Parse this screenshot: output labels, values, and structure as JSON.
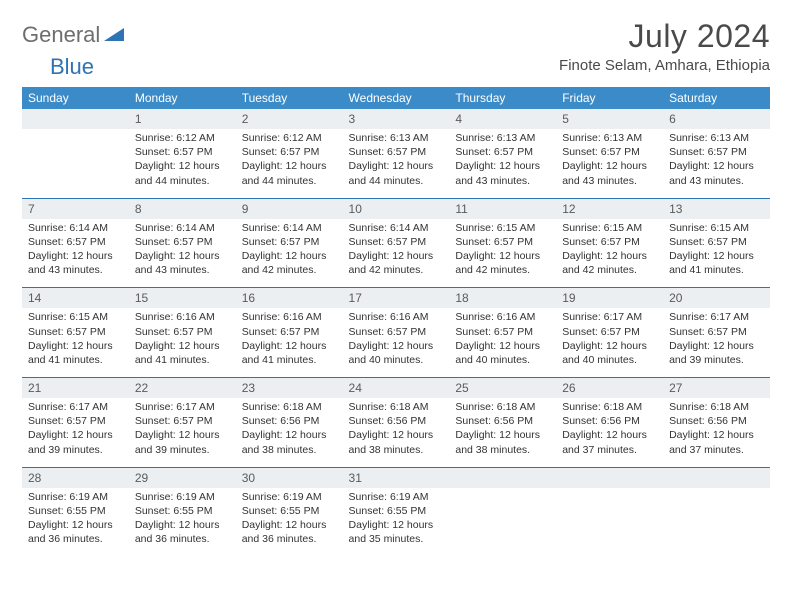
{
  "brand": {
    "word1": "General",
    "word2": "Blue"
  },
  "header": {
    "title": "July 2024",
    "location": "Finote Selam, Amhara, Ethiopia"
  },
  "colors": {
    "header_bg": "#3b8bc9",
    "header_text": "#ffffff",
    "rule": "#2e74b5",
    "daynum_bg": "#eceff1",
    "body_text": "#333333",
    "brand_gray": "#6e6e6e",
    "brand_blue": "#2e74b5"
  },
  "dow": [
    "Sunday",
    "Monday",
    "Tuesday",
    "Wednesday",
    "Thursday",
    "Friday",
    "Saturday"
  ],
  "weeks": [
    [
      null,
      {
        "n": "1",
        "sr": "6:12 AM",
        "ss": "6:57 PM",
        "dl": "12 hours and 44 minutes."
      },
      {
        "n": "2",
        "sr": "6:12 AM",
        "ss": "6:57 PM",
        "dl": "12 hours and 44 minutes."
      },
      {
        "n": "3",
        "sr": "6:13 AM",
        "ss": "6:57 PM",
        "dl": "12 hours and 44 minutes."
      },
      {
        "n": "4",
        "sr": "6:13 AM",
        "ss": "6:57 PM",
        "dl": "12 hours and 43 minutes."
      },
      {
        "n": "5",
        "sr": "6:13 AM",
        "ss": "6:57 PM",
        "dl": "12 hours and 43 minutes."
      },
      {
        "n": "6",
        "sr": "6:13 AM",
        "ss": "6:57 PM",
        "dl": "12 hours and 43 minutes."
      }
    ],
    [
      {
        "n": "7",
        "sr": "6:14 AM",
        "ss": "6:57 PM",
        "dl": "12 hours and 43 minutes."
      },
      {
        "n": "8",
        "sr": "6:14 AM",
        "ss": "6:57 PM",
        "dl": "12 hours and 43 minutes."
      },
      {
        "n": "9",
        "sr": "6:14 AM",
        "ss": "6:57 PM",
        "dl": "12 hours and 42 minutes."
      },
      {
        "n": "10",
        "sr": "6:14 AM",
        "ss": "6:57 PM",
        "dl": "12 hours and 42 minutes."
      },
      {
        "n": "11",
        "sr": "6:15 AM",
        "ss": "6:57 PM",
        "dl": "12 hours and 42 minutes."
      },
      {
        "n": "12",
        "sr": "6:15 AM",
        "ss": "6:57 PM",
        "dl": "12 hours and 42 minutes."
      },
      {
        "n": "13",
        "sr": "6:15 AM",
        "ss": "6:57 PM",
        "dl": "12 hours and 41 minutes."
      }
    ],
    [
      {
        "n": "14",
        "sr": "6:15 AM",
        "ss": "6:57 PM",
        "dl": "12 hours and 41 minutes."
      },
      {
        "n": "15",
        "sr": "6:16 AM",
        "ss": "6:57 PM",
        "dl": "12 hours and 41 minutes."
      },
      {
        "n": "16",
        "sr": "6:16 AM",
        "ss": "6:57 PM",
        "dl": "12 hours and 41 minutes."
      },
      {
        "n": "17",
        "sr": "6:16 AM",
        "ss": "6:57 PM",
        "dl": "12 hours and 40 minutes."
      },
      {
        "n": "18",
        "sr": "6:16 AM",
        "ss": "6:57 PM",
        "dl": "12 hours and 40 minutes."
      },
      {
        "n": "19",
        "sr": "6:17 AM",
        "ss": "6:57 PM",
        "dl": "12 hours and 40 minutes."
      },
      {
        "n": "20",
        "sr": "6:17 AM",
        "ss": "6:57 PM",
        "dl": "12 hours and 39 minutes."
      }
    ],
    [
      {
        "n": "21",
        "sr": "6:17 AM",
        "ss": "6:57 PM",
        "dl": "12 hours and 39 minutes."
      },
      {
        "n": "22",
        "sr": "6:17 AM",
        "ss": "6:57 PM",
        "dl": "12 hours and 39 minutes."
      },
      {
        "n": "23",
        "sr": "6:18 AM",
        "ss": "6:56 PM",
        "dl": "12 hours and 38 minutes."
      },
      {
        "n": "24",
        "sr": "6:18 AM",
        "ss": "6:56 PM",
        "dl": "12 hours and 38 minutes."
      },
      {
        "n": "25",
        "sr": "6:18 AM",
        "ss": "6:56 PM",
        "dl": "12 hours and 38 minutes."
      },
      {
        "n": "26",
        "sr": "6:18 AM",
        "ss": "6:56 PM",
        "dl": "12 hours and 37 minutes."
      },
      {
        "n": "27",
        "sr": "6:18 AM",
        "ss": "6:56 PM",
        "dl": "12 hours and 37 minutes."
      }
    ],
    [
      {
        "n": "28",
        "sr": "6:19 AM",
        "ss": "6:55 PM",
        "dl": "12 hours and 36 minutes."
      },
      {
        "n": "29",
        "sr": "6:19 AM",
        "ss": "6:55 PM",
        "dl": "12 hours and 36 minutes."
      },
      {
        "n": "30",
        "sr": "6:19 AM",
        "ss": "6:55 PM",
        "dl": "12 hours and 36 minutes."
      },
      {
        "n": "31",
        "sr": "6:19 AM",
        "ss": "6:55 PM",
        "dl": "12 hours and 35 minutes."
      },
      null,
      null,
      null
    ]
  ],
  "labels": {
    "sunrise": "Sunrise: ",
    "sunset": "Sunset: ",
    "daylight": "Daylight: "
  }
}
